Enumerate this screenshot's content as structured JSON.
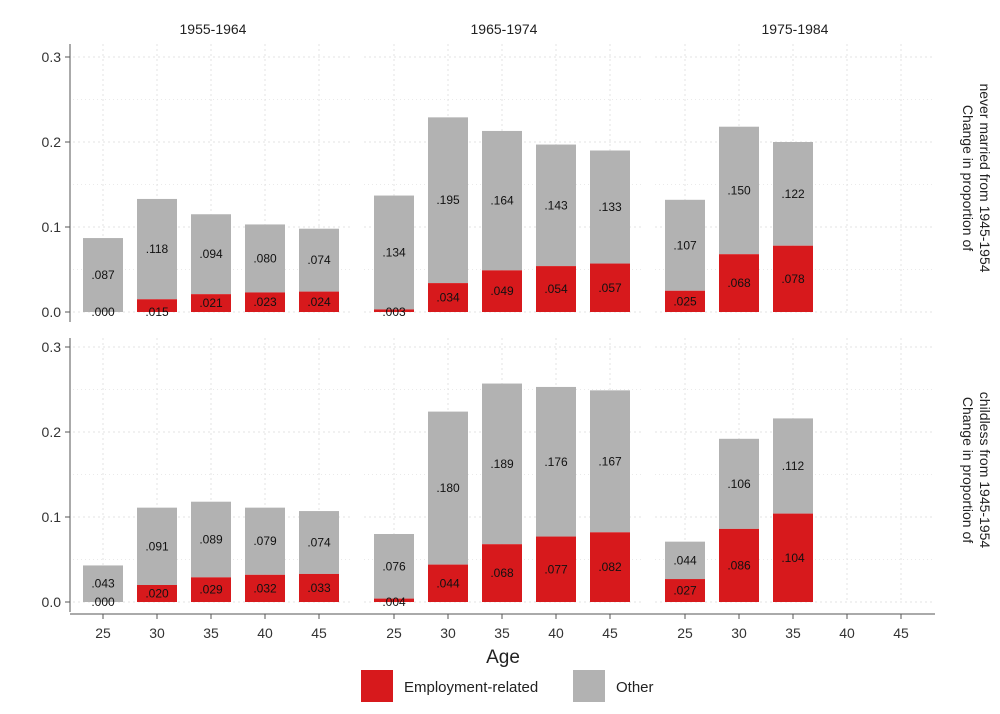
{
  "chart_data": {
    "type": "bar",
    "stacked": true,
    "xlabel": "Age",
    "x_ticks": [
      "25",
      "30",
      "35",
      "40",
      "45"
    ],
    "y_ticks": [
      "0.0",
      "0.1",
      "0.2",
      "0.3"
    ],
    "ylim": [
      0,
      0.3
    ],
    "grid": true,
    "legend_position": "bottom",
    "colors": {
      "employment": "#d7191c",
      "other": "#b2b2b2",
      "grid": "#e3e3e3",
      "axis": "#555555"
    },
    "legend": [
      {
        "key": "employment",
        "label": "Employment-related"
      },
      {
        "key": "other",
        "label": "Other"
      }
    ],
    "columns": [
      "1955-1964",
      "1965-1974",
      "1975-1984"
    ],
    "rows": [
      "Change in proportion of never married from 1945-1954",
      "Change in proportion of childless from 1945-1954"
    ],
    "row_label_lines": [
      [
        "Change in proportion of",
        "never married from 1945-1954"
      ],
      [
        "Change in proportion of",
        "childless from 1945-1954"
      ]
    ],
    "panels": [
      {
        "row": 0,
        "col": 0,
        "bars": [
          {
            "age": "25",
            "employment": 0.0,
            "other": 0.087,
            "employment_label": ".000",
            "other_label": ".087"
          },
          {
            "age": "30",
            "employment": 0.015,
            "other": 0.118,
            "employment_label": ".015",
            "other_label": ".118"
          },
          {
            "age": "35",
            "employment": 0.021,
            "other": 0.094,
            "employment_label": ".021",
            "other_label": ".094"
          },
          {
            "age": "40",
            "employment": 0.023,
            "other": 0.08,
            "employment_label": ".023",
            "other_label": ".080"
          },
          {
            "age": "45",
            "employment": 0.024,
            "other": 0.074,
            "employment_label": ".024",
            "other_label": ".074"
          }
        ]
      },
      {
        "row": 0,
        "col": 1,
        "bars": [
          {
            "age": "25",
            "employment": 0.003,
            "other": 0.134,
            "employment_label": ".003",
            "other_label": ".134"
          },
          {
            "age": "30",
            "employment": 0.034,
            "other": 0.195,
            "employment_label": ".034",
            "other_label": ".195"
          },
          {
            "age": "35",
            "employment": 0.049,
            "other": 0.164,
            "employment_label": ".049",
            "other_label": ".164"
          },
          {
            "age": "40",
            "employment": 0.054,
            "other": 0.143,
            "employment_label": ".054",
            "other_label": ".143"
          },
          {
            "age": "45",
            "employment": 0.057,
            "other": 0.133,
            "employment_label": ".057",
            "other_label": ".133"
          }
        ]
      },
      {
        "row": 0,
        "col": 2,
        "bars": [
          {
            "age": "25",
            "employment": 0.025,
            "other": 0.107,
            "employment_label": ".025",
            "other_label": ".107"
          },
          {
            "age": "30",
            "employment": 0.068,
            "other": 0.15,
            "employment_label": ".068",
            "other_label": ".150"
          },
          {
            "age": "35",
            "employment": 0.078,
            "other": 0.122,
            "employment_label": ".078",
            "other_label": ".122"
          }
        ]
      },
      {
        "row": 1,
        "col": 0,
        "bars": [
          {
            "age": "25",
            "employment": 0.0,
            "other": 0.043,
            "employment_label": ".000",
            "other_label": ".043"
          },
          {
            "age": "30",
            "employment": 0.02,
            "other": 0.091,
            "employment_label": ".020",
            "other_label": ".091"
          },
          {
            "age": "35",
            "employment": 0.029,
            "other": 0.089,
            "employment_label": ".029",
            "other_label": ".089"
          },
          {
            "age": "40",
            "employment": 0.032,
            "other": 0.079,
            "employment_label": ".032",
            "other_label": ".079"
          },
          {
            "age": "45",
            "employment": 0.033,
            "other": 0.074,
            "employment_label": ".033",
            "other_label": ".074"
          }
        ]
      },
      {
        "row": 1,
        "col": 1,
        "bars": [
          {
            "age": "25",
            "employment": 0.004,
            "other": 0.076,
            "employment_label": ".004",
            "other_label": ".076"
          },
          {
            "age": "30",
            "employment": 0.044,
            "other": 0.18,
            "employment_label": ".044",
            "other_label": ".180"
          },
          {
            "age": "35",
            "employment": 0.068,
            "other": 0.189,
            "employment_label": ".068",
            "other_label": ".189"
          },
          {
            "age": "40",
            "employment": 0.077,
            "other": 0.176,
            "employment_label": ".077",
            "other_label": ".176"
          },
          {
            "age": "45",
            "employment": 0.082,
            "other": 0.167,
            "employment_label": ".082",
            "other_label": ".167"
          }
        ]
      },
      {
        "row": 1,
        "col": 2,
        "bars": [
          {
            "age": "25",
            "employment": 0.027,
            "other": 0.044,
            "employment_label": ".027",
            "other_label": ".044"
          },
          {
            "age": "30",
            "employment": 0.086,
            "other": 0.106,
            "employment_label": ".086",
            "other_label": ".106"
          },
          {
            "age": "35",
            "employment": 0.104,
            "other": 0.112,
            "employment_label": ".104",
            "other_label": ".112"
          }
        ]
      }
    ]
  }
}
